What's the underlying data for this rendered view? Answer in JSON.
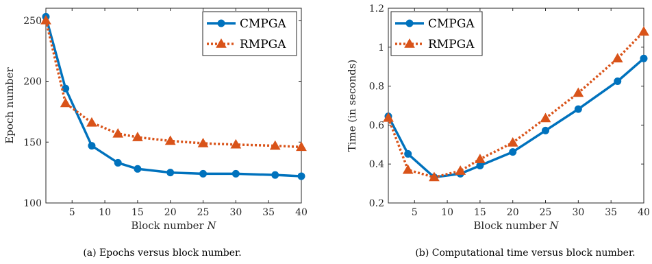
{
  "chart_data": [
    {
      "type": "line",
      "xlabel": "Block number",
      "xlabel_var": "N",
      "ylabel": "Epoch number",
      "xlim": [
        1,
        40
      ],
      "ylim": [
        100,
        260
      ],
      "xticks": [
        5,
        10,
        15,
        20,
        25,
        30,
        35,
        40
      ],
      "yticks": [
        100,
        150,
        200,
        250
      ],
      "legend_position": "top-right",
      "caption": "(a) Epochs versus block number.",
      "series": [
        {
          "name": "CMPGA",
          "color": "#0072BD",
          "style": "solid",
          "marker": "circle",
          "x": [
            1,
            4,
            8,
            12,
            15,
            20,
            25,
            30,
            36,
            40
          ],
          "y": [
            253,
            194,
            147,
            133,
            128,
            125,
            124,
            124,
            123,
            122
          ]
        },
        {
          "name": "RMPGA",
          "color": "#D95319",
          "style": "dotted",
          "marker": "triangle",
          "x": [
            1,
            4,
            8,
            12,
            15,
            20,
            25,
            30,
            36,
            40
          ],
          "y": [
            250,
            182,
            166,
            157,
            154,
            151,
            149,
            148,
            147,
            146
          ]
        }
      ]
    },
    {
      "type": "line",
      "xlabel": "Block number",
      "xlabel_var": "N",
      "ylabel": "Time (in seconds)",
      "xlim": [
        1,
        40
      ],
      "ylim": [
        0.2,
        1.2
      ],
      "xticks": [
        5,
        10,
        15,
        20,
        25,
        30,
        35,
        40
      ],
      "yticks": [
        0.2,
        0.4,
        0.6,
        0.8,
        1,
        1.2
      ],
      "legend_position": "top-left",
      "caption": "(b) Computational time versus block number.",
      "series": [
        {
          "name": "CMPGA",
          "color": "#0072BD",
          "style": "solid",
          "marker": "circle",
          "x": [
            1,
            4,
            8,
            12,
            15,
            20,
            25,
            30,
            36,
            40
          ],
          "y": [
            0.645,
            0.452,
            0.332,
            0.35,
            0.392,
            0.462,
            0.572,
            0.682,
            0.825,
            0.942
          ]
        },
        {
          "name": "RMPGA",
          "color": "#D95319",
          "style": "dotted",
          "marker": "triangle",
          "x": [
            1,
            4,
            8,
            12,
            15,
            20,
            25,
            30,
            36,
            40
          ],
          "y": [
            0.637,
            0.37,
            0.332,
            0.365,
            0.425,
            0.51,
            0.635,
            0.765,
            0.942,
            1.08
          ]
        }
      ]
    }
  ]
}
